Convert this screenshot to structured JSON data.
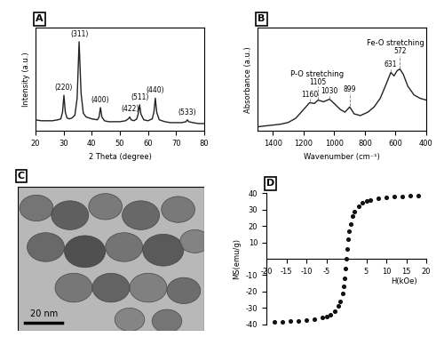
{
  "chart_data": [
    {
      "type": "line",
      "label": "A",
      "x_label": "2 Theta (degree)",
      "y_label": "Intensity (a.u.)",
      "color": "#222222",
      "x": [
        20,
        22,
        24,
        26,
        28,
        29,
        29.6,
        30.1,
        30.6,
        31.2,
        32,
        33,
        34,
        34.8,
        35.5,
        36.2,
        37,
        38,
        40,
        42,
        42.6,
        43.1,
        43.6,
        44.5,
        46,
        48,
        50,
        52,
        53,
        53.5,
        54,
        55,
        56,
        56.5,
        57.0,
        57.5,
        58.5,
        60,
        61.5,
        62.1,
        62.6,
        63.1,
        64,
        66,
        68,
        70,
        72,
        73.5,
        74,
        74.5,
        76,
        78,
        80
      ],
      "values": [
        12,
        11,
        11,
        11,
        12,
        13,
        20,
        38,
        20,
        14,
        13,
        14,
        17,
        35,
        95,
        40,
        19,
        15,
        13,
        12,
        15,
        25,
        15,
        11,
        10,
        10,
        10,
        11,
        13,
        15,
        12,
        11,
        13,
        18,
        28,
        18,
        12,
        11,
        13,
        20,
        35,
        20,
        12,
        10,
        9,
        9,
        9,
        10,
        12,
        10,
        9,
        8,
        8
      ],
      "xlim": [
        20,
        80
      ],
      "ylim": [
        0,
        110
      ],
      "xticks": [
        20,
        30,
        40,
        50,
        60,
        70,
        80
      ],
      "tick_labels": "x",
      "annotations": [
        {
          "text": "(220)",
          "x": 30.1
        },
        {
          "text": "(311)",
          "x": 35.5
        },
        {
          "text": "(400)",
          "x": 43.1
        },
        {
          "text": "(422)",
          "x": 53.5
        },
        {
          "text": "(511)",
          "x": 57.0
        },
        {
          "text": "(440)",
          "x": 62.6
        },
        {
          "text": "(533)",
          "x": 74.0
        }
      ]
    },
    {
      "type": "line",
      "label": "B",
      "x_label": "Wavenumber (cm⁻¹)",
      "y_label": "Absorbance (a.u.)",
      "color": "#222222",
      "x": [
        1500,
        1450,
        1400,
        1350,
        1300,
        1250,
        1200,
        1160,
        1130,
        1105,
        1070,
        1030,
        1000,
        960,
        930,
        899,
        870,
        830,
        780,
        740,
        700,
        660,
        631,
        610,
        590,
        572,
        550,
        520,
        480,
        440,
        400
      ],
      "values": [
        5,
        6,
        7,
        8,
        10,
        15,
        25,
        33,
        32,
        36,
        34,
        37,
        32,
        25,
        22,
        28,
        20,
        18,
        22,
        28,
        38,
        55,
        68,
        64,
        70,
        72,
        66,
        52,
        42,
        38,
        36
      ],
      "xlim": [
        1500,
        400
      ],
      "ylim": [
        0,
        120
      ],
      "xticks": [
        1400,
        1200,
        1000,
        800,
        600,
        400
      ],
      "tick_labels": "x",
      "peaks": [
        1160,
        1105,
        1030,
        899,
        631,
        572
      ],
      "annotations": [
        {
          "text": "P-O stretching",
          "x": 1110
        },
        {
          "text": "Fe-O stretching",
          "x": 600
        }
      ]
    },
    {
      "type": "image",
      "label": "C",
      "scale_bar": "20 nm"
    },
    {
      "type": "scatter",
      "label": "D",
      "x_label": "H(kOe)",
      "y_label": "MS(emu/g)",
      "color": "#111111",
      "marker": "o",
      "x": [
        -18,
        -16,
        -14,
        -12,
        -10,
        -8,
        -6,
        -5,
        -4,
        -3,
        -2,
        -1.5,
        -1,
        -0.75,
        -0.5,
        -0.25,
        0,
        0.25,
        0.5,
        0.75,
        1,
        1.5,
        2,
        3,
        4,
        5,
        6,
        8,
        10,
        12,
        14,
        16,
        18
      ],
      "values": [
        -38.5,
        -38.3,
        -38,
        -37.8,
        -37.5,
        -37,
        -36,
        -35.2,
        -34,
        -32,
        -29,
        -26,
        -21,
        -17,
        -12,
        -6,
        0,
        6,
        12,
        17,
        21,
        26,
        29,
        32,
        34,
        35.2,
        36,
        37,
        37.5,
        37.8,
        38,
        38.3,
        38.5
      ],
      "xlim": [
        -20,
        20
      ],
      "ylim": [
        -40,
        40
      ],
      "xticks": [
        -20,
        -15,
        -10,
        -5,
        5,
        10,
        15,
        20
      ],
      "yticks": [
        -40,
        -30,
        -20,
        -10,
        10,
        20,
        30,
        40
      ]
    }
  ]
}
